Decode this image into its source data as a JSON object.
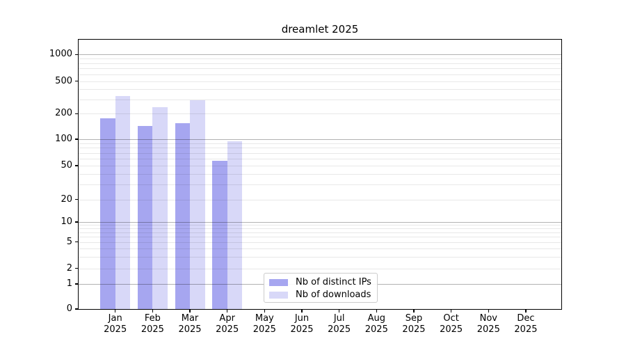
{
  "figure": {
    "title": "dreamlet 2025",
    "background": "#ffffff"
  },
  "axes": {
    "y_tick_labels": [
      "0",
      "1",
      "2",
      "5",
      "10",
      "20",
      "50",
      "100",
      "200",
      "500",
      "1000"
    ],
    "x_tick_months": [
      "Jan",
      "Feb",
      "Mar",
      "Apr",
      "May",
      "Jun",
      "Jul",
      "Aug",
      "Sep",
      "Oct",
      "Nov",
      "Dec"
    ],
    "x_tick_year": "2025"
  },
  "legend": {
    "items": [
      {
        "label": "Nb of distinct IPs",
        "color": "#a6a6f0"
      },
      {
        "label": "Nb of downloads",
        "color": "#d8d8f8"
      }
    ]
  },
  "chart_data": {
    "type": "bar",
    "title": "dreamlet 2025",
    "categories": [
      "Jan 2025",
      "Feb 2025",
      "Mar 2025",
      "Apr 2025",
      "May 2025",
      "Jun 2025",
      "Jul 2025",
      "Aug 2025",
      "Sep 2025",
      "Oct 2025",
      "Nov 2025",
      "Dec 2025"
    ],
    "series": [
      {
        "name": "Nb of distinct IPs",
        "color": "#a6a6f0",
        "values": [
          175,
          142,
          155,
          57,
          0,
          0,
          0,
          0,
          0,
          0,
          0,
          0
        ]
      },
      {
        "name": "Nb of downloads",
        "color": "#d8d8f8",
        "values": [
          330,
          240,
          290,
          95,
          0,
          0,
          0,
          0,
          0,
          0,
          0,
          0
        ]
      }
    ],
    "yscale": "symlog",
    "yticks": [
      0,
      1,
      2,
      5,
      10,
      20,
      50,
      100,
      200,
      500,
      1000
    ],
    "ylim": [
      0,
      1500
    ],
    "xlabel": "",
    "ylabel": "",
    "grid": "horizontal major and minor gridlines, drawn over bars",
    "legend_position": "lower center"
  }
}
